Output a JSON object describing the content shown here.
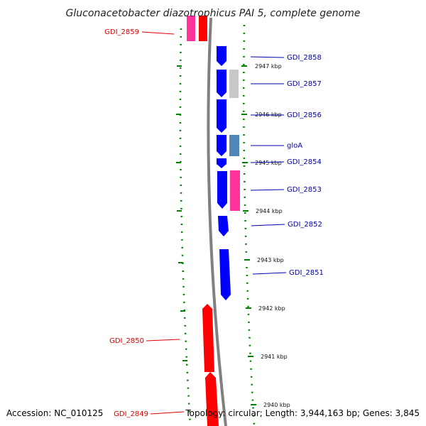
{
  "title": "Gluconacetobacter diazotrophicus PAI 5, complete genome",
  "footer": {
    "accession": "Accession: NC_010125",
    "topology": "Topology: circular; Length: 3,944,163 bp; Genes: 3,845"
  },
  "colors": {
    "reverse_cds": "#ff0000",
    "forward_cds": "#0000ff",
    "forward_label": "#0000aa",
    "reverse_label": "#dd0000",
    "rrna": "#ff3399",
    "grey_feature": "#c8c8c8",
    "steel_feature": "#4f86b8",
    "backbone": "#808080",
    "ticks": "#008000"
  },
  "tick_labels": [
    "2947 kbp",
    "2946 kbp",
    "2945 kbp",
    "2944 kbp",
    "2943 kbp",
    "2942 kbp",
    "2941 kbp",
    "2940 kbp"
  ],
  "forward_genes": [
    "GDI_2858",
    "GDI_2857",
    "GDI_2856",
    "gloA",
    "GDI_2854",
    "GDI_2853",
    "GDI_2852",
    "GDI_2851"
  ],
  "reverse_genes": [
    "GDI_2859",
    "GDI_2850",
    "GDI_2849"
  ]
}
